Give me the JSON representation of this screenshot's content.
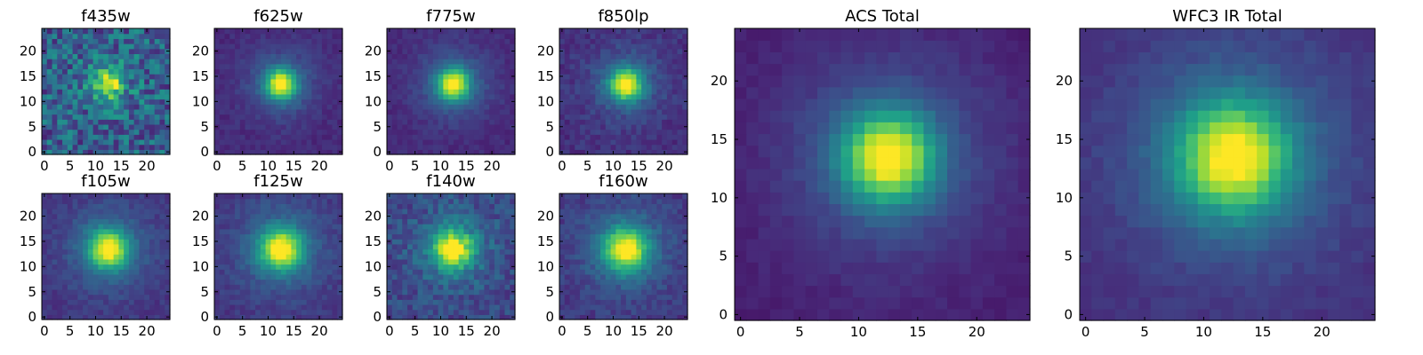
{
  "figure": {
    "colormap": "viridis",
    "colormap_stops": [
      "#440154",
      "#482878",
      "#3e4a89",
      "#31688e",
      "#26828e",
      "#1f9e89",
      "#35b779",
      "#6ece58",
      "#b5de2b",
      "#fde725"
    ]
  },
  "chart_data": [
    {
      "type": "heatmap",
      "title": "f435w",
      "size": 25,
      "xlim": [
        0,
        24
      ],
      "ylim": [
        0,
        24
      ],
      "xticks": [
        0,
        5,
        10,
        15,
        20
      ],
      "yticks": [
        0,
        5,
        10,
        15,
        20
      ],
      "peak": [
        12.5,
        13.5
      ],
      "sigma": 1.7,
      "noise": 0.42,
      "floor": 0.3
    },
    {
      "type": "heatmap",
      "title": "f625w",
      "size": 25,
      "xlim": [
        0,
        24
      ],
      "ylim": [
        0,
        24
      ],
      "xticks": [
        0,
        5,
        10,
        15,
        20
      ],
      "yticks": [
        0,
        5,
        10,
        15,
        20
      ],
      "peak": [
        12.5,
        13.5
      ],
      "sigma": 2.0,
      "noise": 0.08,
      "floor": 0.12
    },
    {
      "type": "heatmap",
      "title": "f775w",
      "size": 25,
      "xlim": [
        0,
        24
      ],
      "ylim": [
        0,
        24
      ],
      "xticks": [
        0,
        5,
        10,
        15,
        20
      ],
      "yticks": [
        0,
        5,
        10,
        15,
        20
      ],
      "peak": [
        12.5,
        13.5
      ],
      "sigma": 2.1,
      "noise": 0.08,
      "floor": 0.12
    },
    {
      "type": "heatmap",
      "title": "f850lp",
      "size": 25,
      "xlim": [
        0,
        24
      ],
      "ylim": [
        0,
        24
      ],
      "xticks": [
        0,
        5,
        10,
        15,
        20
      ],
      "yticks": [
        0,
        5,
        10,
        15,
        20
      ],
      "peak": [
        12.5,
        13.5
      ],
      "sigma": 2.1,
      "noise": 0.12,
      "floor": 0.14
    },
    {
      "type": "heatmap",
      "title": "f105w",
      "size": 25,
      "xlim": [
        0,
        24
      ],
      "ylim": [
        0,
        24
      ],
      "xticks": [
        0,
        5,
        10,
        15,
        20
      ],
      "yticks": [
        0,
        5,
        10,
        15,
        20
      ],
      "peak": [
        12.5,
        13.5
      ],
      "sigma": 2.6,
      "noise": 0.1,
      "floor": 0.15
    },
    {
      "type": "heatmap",
      "title": "f125w",
      "size": 25,
      "xlim": [
        0,
        24
      ],
      "ylim": [
        0,
        24
      ],
      "xticks": [
        0,
        5,
        10,
        15,
        20
      ],
      "yticks": [
        0,
        5,
        10,
        15,
        20
      ],
      "peak": [
        12.5,
        13.5
      ],
      "sigma": 2.8,
      "noise": 0.1,
      "floor": 0.15
    },
    {
      "type": "heatmap",
      "title": "f140w",
      "size": 25,
      "xlim": [
        0,
        24
      ],
      "ylim": [
        0,
        24
      ],
      "xticks": [
        0,
        5,
        10,
        15,
        20
      ],
      "yticks": [
        0,
        5,
        10,
        15,
        20
      ],
      "peak": [
        12.5,
        13.5
      ],
      "sigma": 2.6,
      "noise": 0.2,
      "floor": 0.2
    },
    {
      "type": "heatmap",
      "title": "f160w",
      "size": 25,
      "xlim": [
        0,
        24
      ],
      "ylim": [
        0,
        24
      ],
      "xticks": [
        0,
        5,
        10,
        15,
        20
      ],
      "yticks": [
        0,
        5,
        10,
        15,
        20
      ],
      "peak": [
        12.5,
        13.5
      ],
      "sigma": 2.9,
      "noise": 0.12,
      "floor": 0.15
    },
    {
      "type": "heatmap",
      "title": "ACS Total",
      "size": 25,
      "xlim": [
        0,
        24
      ],
      "ylim": [
        0,
        24
      ],
      "xticks": [
        0,
        5,
        10,
        15,
        20
      ],
      "yticks": [
        0,
        5,
        10,
        15,
        20
      ],
      "peak": [
        12.5,
        13.5
      ],
      "sigma": 2.6,
      "noise": 0.05,
      "floor": 0.08
    },
    {
      "type": "heatmap",
      "title": "WFC3 IR Total",
      "size": 25,
      "xlim": [
        0,
        24
      ],
      "ylim": [
        0,
        24
      ],
      "xticks": [
        0,
        5,
        10,
        15,
        20
      ],
      "yticks": [
        0,
        5,
        10,
        15,
        20
      ],
      "peak": [
        12.5,
        13.5
      ],
      "sigma": 3.2,
      "noise": 0.06,
      "floor": 0.12
    }
  ]
}
